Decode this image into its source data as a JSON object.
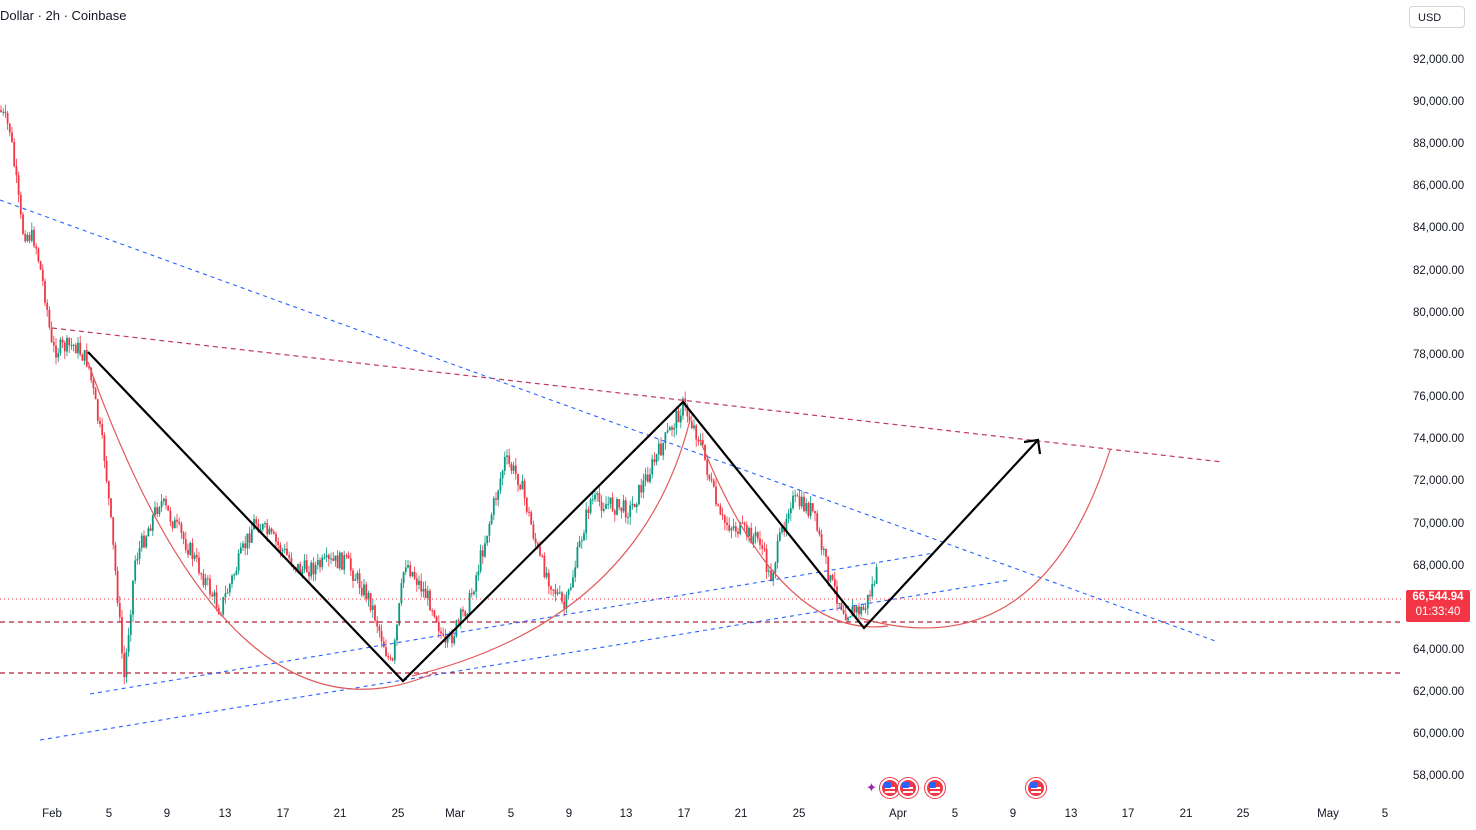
{
  "header": {
    "title": "Dollar · 2h · Coinbase",
    "currency": "USD"
  },
  "price_axis": {
    "labels": [
      "92,000.00",
      "90,000.00",
      "88,000.00",
      "86,000.00",
      "84,000.00",
      "82,000.00",
      "80,000.00",
      "78,000.00",
      "76,000.00",
      "74,000.00",
      "72,000.00",
      "70,000.00",
      "68,000.00",
      "64,000.00",
      "62,000.00",
      "60,000.00",
      "58,000.00"
    ]
  },
  "time_axis": {
    "labels": [
      "Feb",
      "5",
      "9",
      "13",
      "17",
      "21",
      "25",
      "Mar",
      "5",
      "9",
      "13",
      "17",
      "21",
      "25",
      "Apr",
      "5",
      "9",
      "13",
      "17",
      "21",
      "25",
      "May",
      "5"
    ]
  },
  "last_price": {
    "price": "66,544.94",
    "countdown": "01:33:40",
    "color": "#f23645"
  },
  "colors": {
    "bull": "#089981",
    "bear": "#f23645",
    "trend_blue": "#2962ff",
    "resistance_red": "#b2223a",
    "pattern_path": "#000000",
    "arc": "#e05a5a"
  },
  "drawings": {
    "pattern_path_prices": [
      78000,
      62700,
      75800,
      65300,
      74000
    ],
    "support_levels": [
      65600,
      63000
    ],
    "current_price_line": 66544.94
  },
  "events": [
    {
      "icon": "us-flag-icon"
    },
    {
      "icon": "us-flag-icon"
    },
    {
      "icon": "us-flag-icon"
    },
    {
      "icon": "us-flag-icon"
    }
  ]
}
